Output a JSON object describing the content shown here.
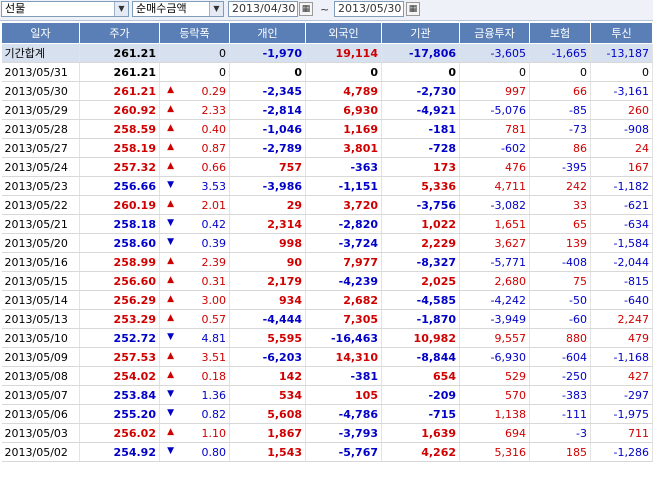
{
  "toolbar": {
    "market": "선물",
    "metric": "순매수금액",
    "start_date": "2013/04/30",
    "separator": "~",
    "end_date": "2013/05/30"
  },
  "table": {
    "headers": [
      "일자",
      "주가",
      "등락폭",
      "개인",
      "외국인",
      "기관",
      "금융투자",
      "보험",
      "투신"
    ],
    "summary": {
      "label": "기간합계",
      "price": "261.21",
      "change": "0",
      "individual": "-1,970",
      "foreign": "19,114",
      "institution": "-17,806",
      "fin_invest": "-3,605",
      "insurance": "-1,665",
      "trust": "-13,187"
    },
    "rows": [
      {
        "date": "2013/05/31",
        "price": "261.21",
        "dir": "none",
        "change": "0",
        "individual": "0",
        "foreign": "0",
        "institution": "0",
        "fin_invest": "0",
        "insurance": "0",
        "trust": "0"
      },
      {
        "date": "2013/05/30",
        "price": "261.21",
        "dir": "up",
        "change": "0.29",
        "individual": "-2,345",
        "foreign": "4,789",
        "institution": "-2,730",
        "fin_invest": "997",
        "insurance": "66",
        "trust": "-3,161"
      },
      {
        "date": "2013/05/29",
        "price": "260.92",
        "dir": "up",
        "change": "2.33",
        "individual": "-2,814",
        "foreign": "6,930",
        "institution": "-4,921",
        "fin_invest": "-5,076",
        "insurance": "-85",
        "trust": "260"
      },
      {
        "date": "2013/05/28",
        "price": "258.59",
        "dir": "up",
        "change": "0.40",
        "individual": "-1,046",
        "foreign": "1,169",
        "institution": "-181",
        "fin_invest": "781",
        "insurance": "-73",
        "trust": "-908"
      },
      {
        "date": "2013/05/27",
        "price": "258.19",
        "dir": "up",
        "change": "0.87",
        "individual": "-2,789",
        "foreign": "3,801",
        "institution": "-728",
        "fin_invest": "-602",
        "insurance": "86",
        "trust": "24"
      },
      {
        "date": "2013/05/24",
        "price": "257.32",
        "dir": "up",
        "change": "0.66",
        "individual": "757",
        "foreign": "-363",
        "institution": "173",
        "fin_invest": "476",
        "insurance": "-395",
        "trust": "167"
      },
      {
        "date": "2013/05/23",
        "price": "256.66",
        "dir": "down",
        "change": "3.53",
        "individual": "-3,986",
        "foreign": "-1,151",
        "institution": "5,336",
        "fin_invest": "4,711",
        "insurance": "242",
        "trust": "-1,182"
      },
      {
        "date": "2013/05/22",
        "price": "260.19",
        "dir": "up",
        "change": "2.01",
        "individual": "29",
        "foreign": "3,720",
        "institution": "-3,756",
        "fin_invest": "-3,082",
        "insurance": "33",
        "trust": "-621"
      },
      {
        "date": "2013/05/21",
        "price": "258.18",
        "dir": "down",
        "change": "0.42",
        "individual": "2,314",
        "foreign": "-2,820",
        "institution": "1,022",
        "fin_invest": "1,651",
        "insurance": "65",
        "trust": "-634"
      },
      {
        "date": "2013/05/20",
        "price": "258.60",
        "dir": "down",
        "change": "0.39",
        "individual": "998",
        "foreign": "-3,724",
        "institution": "2,229",
        "fin_invest": "3,627",
        "insurance": "139",
        "trust": "-1,584"
      },
      {
        "date": "2013/05/16",
        "price": "258.99",
        "dir": "up",
        "change": "2.39",
        "individual": "90",
        "foreign": "7,977",
        "institution": "-8,327",
        "fin_invest": "-5,771",
        "insurance": "-408",
        "trust": "-2,044"
      },
      {
        "date": "2013/05/15",
        "price": "256.60",
        "dir": "up",
        "change": "0.31",
        "individual": "2,179",
        "foreign": "-4,239",
        "institution": "2,025",
        "fin_invest": "2,680",
        "insurance": "75",
        "trust": "-815"
      },
      {
        "date": "2013/05/14",
        "price": "256.29",
        "dir": "up",
        "change": "3.00",
        "individual": "934",
        "foreign": "2,682",
        "institution": "-4,585",
        "fin_invest": "-4,242",
        "insurance": "-50",
        "trust": "-640"
      },
      {
        "date": "2013/05/13",
        "price": "253.29",
        "dir": "up",
        "change": "0.57",
        "individual": "-4,444",
        "foreign": "7,305",
        "institution": "-1,870",
        "fin_invest": "-3,949",
        "insurance": "-60",
        "trust": "2,247"
      },
      {
        "date": "2013/05/10",
        "price": "252.72",
        "dir": "down",
        "change": "4.81",
        "individual": "5,595",
        "foreign": "-16,463",
        "institution": "10,982",
        "fin_invest": "9,557",
        "insurance": "880",
        "trust": "479"
      },
      {
        "date": "2013/05/09",
        "price": "257.53",
        "dir": "up",
        "change": "3.51",
        "individual": "-6,203",
        "foreign": "14,310",
        "institution": "-8,844",
        "fin_invest": "-6,930",
        "insurance": "-604",
        "trust": "-1,168"
      },
      {
        "date": "2013/05/08",
        "price": "254.02",
        "dir": "up",
        "change": "0.18",
        "individual": "142",
        "foreign": "-381",
        "institution": "654",
        "fin_invest": "529",
        "insurance": "-250",
        "trust": "427"
      },
      {
        "date": "2013/05/07",
        "price": "253.84",
        "dir": "down",
        "change": "1.36",
        "individual": "534",
        "foreign": "105",
        "institution": "-209",
        "fin_invest": "570",
        "insurance": "-383",
        "trust": "-297"
      },
      {
        "date": "2013/05/06",
        "price": "255.20",
        "dir": "down",
        "change": "0.82",
        "individual": "5,608",
        "foreign": "-4,786",
        "institution": "-715",
        "fin_invest": "1,138",
        "insurance": "-111",
        "trust": "-1,975"
      },
      {
        "date": "2013/05/03",
        "price": "256.02",
        "dir": "up",
        "change": "1.10",
        "individual": "1,867",
        "foreign": "-3,793",
        "institution": "1,639",
        "fin_invest": "694",
        "insurance": "-3",
        "trust": "711"
      },
      {
        "date": "2013/05/02",
        "price": "254.92",
        "dir": "down",
        "change": "0.80",
        "individual": "1,543",
        "foreign": "-5,767",
        "institution": "4,262",
        "fin_invest": "5,316",
        "insurance": "185",
        "trust": "-1,286"
      }
    ]
  },
  "colors": {
    "up": "#d00000",
    "down": "#0000c8",
    "header_bg": "#5a7fb7",
    "summary_bg": "#d6e0ee"
  },
  "icons": {
    "up": "up-triangle-icon",
    "down": "down-triangle-icon"
  }
}
